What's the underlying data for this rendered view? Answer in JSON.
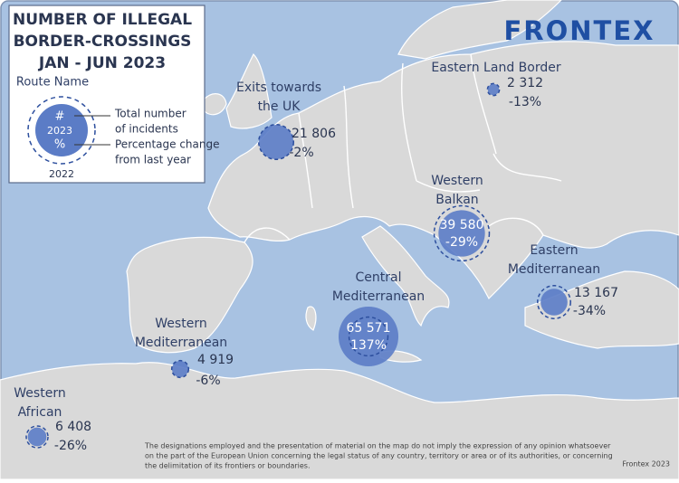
{
  "logo": "FRONTEX",
  "legend": {
    "title": [
      "NUMBER OF ILLEGAL",
      "BORDER-CROSSINGS",
      "JAN - JUN 2023"
    ],
    "route_name": "Route Name",
    "count_symbol": "#",
    "year_current": "2023",
    "percent_symbol": "%",
    "year_previous": "2022",
    "count_text": [
      "Total number",
      "of incidents"
    ],
    "change_text": [
      "Percentage change",
      "from last year"
    ]
  },
  "routes": [
    {
      "name": [
        "Eastern Land Border"
      ],
      "incidents": 2312,
      "incidents_label": "2 312",
      "change": -13,
      "change_label": "-13%"
    },
    {
      "name": [
        "Exits towards",
        "the UK"
      ],
      "incidents": 21806,
      "incidents_label": "21 806",
      "change": -2,
      "change_label": "-2%"
    },
    {
      "name": [
        "Western",
        "Balkan"
      ],
      "incidents": 39580,
      "incidents_label": "39 580",
      "change": -29,
      "change_label": "-29%"
    },
    {
      "name": [
        "Eastern",
        "Mediterranean"
      ],
      "incidents": 13167,
      "incidents_label": "13 167",
      "change": -34,
      "change_label": "-34%"
    },
    {
      "name": [
        "Central",
        "Mediterranean"
      ],
      "incidents": 65571,
      "incidents_label": "65 571",
      "change": 137,
      "change_label": "137%"
    },
    {
      "name": [
        "Western",
        "Mediterranean"
      ],
      "incidents": 4919,
      "incidents_label": "4 919",
      "change": -6,
      "change_label": "-6%"
    },
    {
      "name": [
        "Western",
        "African"
      ],
      "incidents": 6408,
      "incidents_label": "6 408",
      "change": -26,
      "change_label": "-26%"
    }
  ],
  "disclaimer": [
    "The designations employed and the presentation of material on the map do not imply the expression of any opinion whatsoever",
    "on the part of the European Union concerning the legal status of any country, territory or area or of its authorities, or concerning",
    "the delimitation of its frontiers or boundaries."
  ],
  "credit": "Frontex 2023"
}
